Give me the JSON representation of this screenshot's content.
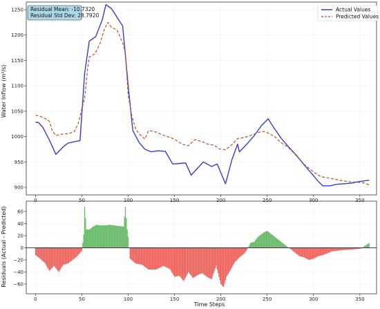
{
  "chart_data": [
    {
      "type": "line",
      "ylabel": "Water Inflow (m³/s)",
      "xlim": [
        -10,
        368
      ],
      "ylim": [
        885,
        1265
      ],
      "x_ticks": [
        0,
        50,
        100,
        150,
        200,
        250,
        300,
        350
      ],
      "y_ticks": [
        900,
        950,
        1000,
        1050,
        1100,
        1150,
        1200,
        1250
      ],
      "grid": true,
      "legend_position": "top-right",
      "annotation": [
        "Residual Mean: -10.7320",
        "Residual Std Dev: 28.7920"
      ],
      "series": [
        {
          "name": "Actual Values",
          "color": "#3a3acc",
          "style": "solid",
          "points": [
            [
              0,
              1028
            ],
            [
              3,
              1028
            ],
            [
              8,
              1018
            ],
            [
              15,
              993
            ],
            [
              22,
              965
            ],
            [
              30,
              980
            ],
            [
              35,
              987
            ],
            [
              42,
              990
            ],
            [
              48,
              992
            ],
            [
              53,
              1125
            ],
            [
              58,
              1188
            ],
            [
              65,
              1197
            ],
            [
              72,
              1230
            ],
            [
              76,
              1260
            ],
            [
              82,
              1252
            ],
            [
              88,
              1235
            ],
            [
              94,
              1218
            ],
            [
              97,
              1160
            ],
            [
              100,
              1100
            ],
            [
              105,
              1012
            ],
            [
              112,
              988
            ],
            [
              118,
              975
            ],
            [
              125,
              970
            ],
            [
              132,
              972
            ],
            [
              140,
              971
            ],
            [
              148,
              946
            ],
            [
              155,
              947
            ],
            [
              162,
              948
            ],
            [
              168,
              924
            ],
            [
              175,
              938
            ],
            [
              181,
              950
            ],
            [
              190,
              941
            ],
            [
              196,
              946
            ],
            [
              205,
              907
            ],
            [
              212,
              955
            ],
            [
              218,
              985
            ],
            [
              220,
              970
            ],
            [
              228,
              985
            ],
            [
              236,
              1002
            ],
            [
              244,
              1022
            ],
            [
              251,
              1035
            ],
            [
              257,
              1018
            ],
            [
              265,
              997
            ],
            [
              273,
              980
            ],
            [
              282,
              962
            ],
            [
              290,
              944
            ],
            [
              298,
              927
            ],
            [
              305,
              912
            ],
            [
              310,
              903
            ],
            [
              318,
              903
            ],
            [
              325,
              906
            ],
            [
              333,
              907
            ],
            [
              340,
              908
            ],
            [
              348,
              911
            ],
            [
              352,
              912
            ],
            [
              360,
              914
            ]
          ]
        },
        {
          "name": "Predicted Values",
          "color": "#b5522a",
          "style": "dashed",
          "points": [
            [
              0,
              1042
            ],
            [
              5,
              1040
            ],
            [
              10,
              1036
            ],
            [
              15,
              1030
            ],
            [
              18,
              1012
            ],
            [
              22,
              1002
            ],
            [
              26,
              1004
            ],
            [
              30,
              1005
            ],
            [
              36,
              1006
            ],
            [
              42,
              1010
            ],
            [
              46,
              1025
            ],
            [
              50,
              1055
            ],
            [
              53,
              1075
            ],
            [
              56,
              1130
            ],
            [
              58,
              1157
            ],
            [
              64,
              1163
            ],
            [
              70,
              1185
            ],
            [
              74,
              1210
            ],
            [
              78,
              1225
            ],
            [
              82,
              1215
            ],
            [
              88,
              1210
            ],
            [
              94,
              1185
            ],
            [
              97,
              1165
            ],
            [
              100,
              1082
            ],
            [
              104,
              1040
            ],
            [
              108,
              1015
            ],
            [
              112,
              1005
            ],
            [
              118,
              995
            ],
            [
              122,
              1012
            ],
            [
              128,
              1010
            ],
            [
              135,
              1005
            ],
            [
              142,
              1000
            ],
            [
              150,
              995
            ],
            [
              158,
              985
            ],
            [
              165,
              982
            ],
            [
              172,
              994
            ],
            [
              180,
              990
            ],
            [
              186,
              985
            ],
            [
              193,
              983
            ],
            [
              198,
              976
            ],
            [
              205,
              974
            ],
            [
              212,
              984
            ],
            [
              218,
              996
            ],
            [
              225,
              998
            ],
            [
              232,
              1002
            ],
            [
              240,
              1008
            ],
            [
              246,
              1010
            ],
            [
              250,
              1008
            ],
            [
              258,
              1000
            ],
            [
              265,
              988
            ],
            [
              272,
              980
            ],
            [
              280,
              965
            ],
            [
              290,
              945
            ],
            [
              300,
              930
            ],
            [
              308,
              921
            ],
            [
              318,
              918
            ],
            [
              328,
              914
            ],
            [
              338,
              911
            ],
            [
              348,
              910
            ],
            [
              354,
              909
            ],
            [
              360,
              905
            ]
          ]
        }
      ]
    },
    {
      "type": "bar",
      "ylabel": "Residuals (Actual - Predicted)",
      "xlabel": "Time Steps",
      "xlim": [
        -10,
        368
      ],
      "ylim": [
        -76,
        77
      ],
      "x_ticks": [
        0,
        50,
        100,
        150,
        200,
        250,
        300,
        350
      ],
      "y_ticks": [
        -60,
        -40,
        -20,
        0,
        20,
        40,
        60
      ],
      "grid": true,
      "positive_color": "#2ca02c",
      "negative_color": "#e8281f",
      "residual_profile": [
        [
          0,
          -12
        ],
        [
          5,
          -18
        ],
        [
          10,
          -25
        ],
        [
          15,
          -38
        ],
        [
          20,
          -30
        ],
        [
          25,
          -40
        ],
        [
          30,
          -28
        ],
        [
          35,
          -26
        ],
        [
          40,
          -20
        ],
        [
          45,
          -14
        ],
        [
          50,
          -5
        ],
        [
          52,
          22
        ],
        [
          53,
          68
        ],
        [
          55,
          30
        ],
        [
          58,
          30
        ],
        [
          62,
          35
        ],
        [
          66,
          38
        ],
        [
          70,
          37
        ],
        [
          75,
          37
        ],
        [
          80,
          38
        ],
        [
          85,
          37
        ],
        [
          90,
          36
        ],
        [
          95,
          35
        ],
        [
          97,
          68
        ],
        [
          99,
          30
        ],
        [
          100,
          18
        ],
        [
          102,
          -18
        ],
        [
          108,
          -26
        ],
        [
          115,
          -28
        ],
        [
          122,
          -36
        ],
        [
          130,
          -36
        ],
        [
          138,
          -30
        ],
        [
          145,
          -35
        ],
        [
          150,
          -48
        ],
        [
          155,
          -46
        ],
        [
          160,
          -55
        ],
        [
          165,
          -40
        ],
        [
          170,
          -50
        ],
        [
          175,
          -45
        ],
        [
          180,
          -42
        ],
        [
          185,
          -48
        ],
        [
          190,
          -52
        ],
        [
          195,
          -30
        ],
        [
          200,
          -60
        ],
        [
          203,
          -65
        ],
        [
          206,
          -48
        ],
        [
          210,
          -38
        ],
        [
          215,
          -24
        ],
        [
          220,
          -16
        ],
        [
          225,
          -10
        ],
        [
          228,
          -4
        ],
        [
          232,
          8
        ],
        [
          236,
          10
        ],
        [
          240,
          18
        ],
        [
          246,
          25
        ],
        [
          250,
          28
        ],
        [
          255,
          22
        ],
        [
          260,
          16
        ],
        [
          265,
          10
        ],
        [
          270,
          4
        ],
        [
          275,
          -2
        ],
        [
          280,
          -8
        ],
        [
          285,
          -14
        ],
        [
          290,
          -16
        ],
        [
          295,
          -20
        ],
        [
          300,
          -18
        ],
        [
          305,
          -14
        ],
        [
          310,
          -12
        ],
        [
          320,
          -6
        ],
        [
          330,
          -4
        ],
        [
          340,
          -3
        ],
        [
          348,
          -2
        ],
        [
          352,
          -1
        ],
        [
          355,
          3
        ],
        [
          360,
          8
        ]
      ]
    }
  ]
}
